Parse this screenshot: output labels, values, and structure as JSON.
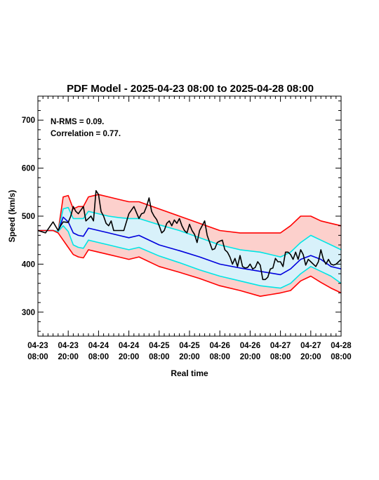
{
  "chart_data": {
    "type": "line",
    "title": "PDF Model - 2025-04-23 08:00 to 2025-04-28 08:00",
    "xlabel": "Real time",
    "ylabel": "Speed (km/s)",
    "xlim": [
      "2025-04-23 08:00",
      "2025-04-28 08:00"
    ],
    "ylim": [
      250,
      750
    ],
    "y_ticks": [
      300,
      400,
      500,
      600,
      700
    ],
    "x_ticks": [
      {
        "top": "04-23",
        "bottom": "08:00"
      },
      {
        "top": "04-23",
        "bottom": "20:00"
      },
      {
        "top": "04-24",
        "bottom": "08:00"
      },
      {
        "top": "04-24",
        "bottom": "20:00"
      },
      {
        "top": "04-25",
        "bottom": "08:00"
      },
      {
        "top": "04-25",
        "bottom": "20:00"
      },
      {
        "top": "04-26",
        "bottom": "08:00"
      },
      {
        "top": "04-26",
        "bottom": "20:00"
      },
      {
        "top": "04-27",
        "bottom": "08:00"
      },
      {
        "top": "04-27",
        "bottom": "20:00"
      },
      {
        "top": "04-28",
        "bottom": "08:00"
      }
    ],
    "annotations": [
      "N-RMS = 0.09.",
      "Correlation = 0.77."
    ],
    "x_hours": [
      0,
      4,
      6,
      8,
      10,
      12,
      14,
      16,
      18,
      20,
      24,
      28,
      32,
      36,
      40,
      48,
      56,
      64,
      72,
      80,
      88,
      96,
      100,
      104,
      108,
      112,
      116,
      120
    ],
    "series": [
      {
        "color": "#ff0000",
        "values": [
          470,
          470,
          470,
          468,
          540,
          543,
          515,
          520,
          520,
          540,
          545,
          540,
          535,
          530,
          530,
          515,
          500,
          485,
          470,
          465,
          465,
          465,
          480,
          500,
          500,
          490,
          485,
          480
        ]
      },
      {
        "color": "#00e5e5",
        "values": [
          470,
          470,
          470,
          468,
          515,
          518,
          495,
          495,
          495,
          510,
          505,
          500,
          497,
          495,
          495,
          482,
          470,
          455,
          440,
          430,
          425,
          415,
          425,
          445,
          460,
          450,
          440,
          430
        ]
      },
      {
        "color": "#0000dd",
        "values": [
          470,
          470,
          470,
          468,
          498,
          488,
          465,
          460,
          458,
          475,
          470,
          465,
          460,
          455,
          460,
          440,
          428,
          415,
          400,
          392,
          385,
          378,
          390,
          410,
          418,
          410,
          395,
          390
        ]
      },
      {
        "color": "#00e5e5",
        "values": [
          470,
          470,
          470,
          468,
          480,
          468,
          440,
          435,
          433,
          450,
          445,
          440,
          435,
          430,
          435,
          417,
          403,
          388,
          375,
          365,
          355,
          350,
          360,
          380,
          395,
          385,
          375,
          360
        ]
      },
      {
        "color": "#ff0000",
        "values": [
          470,
          470,
          470,
          465,
          450,
          435,
          420,
          415,
          413,
          430,
          425,
          420,
          415,
          410,
          415,
          395,
          383,
          370,
          355,
          345,
          333,
          340,
          345,
          365,
          375,
          362,
          350,
          340
        ]
      }
    ],
    "bands": [
      {
        "between": [
          0,
          4
        ],
        "color": "#fcd0cc"
      },
      {
        "between": [
          1,
          3
        ],
        "color": "#d8f1fa"
      }
    ],
    "observed": {
      "color": "#000000",
      "x_hours": [
        0,
        3,
        6,
        8,
        9,
        10,
        12,
        13,
        14,
        15,
        16,
        18,
        19,
        20,
        21,
        22,
        23,
        24,
        25,
        26,
        27,
        28,
        29,
        30,
        32,
        34,
        36,
        38,
        40,
        41,
        42,
        43,
        44,
        45,
        46,
        47,
        48,
        49,
        50,
        51,
        52,
        53,
        54,
        55,
        56,
        57,
        58,
        59,
        60,
        61,
        62,
        63,
        64,
        65,
        66,
        67,
        68,
        69,
        70,
        71,
        72,
        73,
        74,
        75,
        76,
        77,
        78,
        79,
        80,
        81,
        82,
        83,
        84,
        85,
        86,
        87,
        88,
        89,
        90,
        91,
        92,
        93,
        94,
        95,
        96,
        97,
        98,
        99,
        100,
        101,
        102,
        103,
        104,
        105,
        106,
        107,
        108,
        109,
        110,
        111,
        112,
        113,
        114,
        115,
        116,
        117,
        118,
        119,
        120
      ],
      "values": [
        470,
        465,
        488,
        470,
        480,
        488,
        487,
        500,
        520,
        510,
        505,
        520,
        490,
        495,
        500,
        490,
        553,
        545,
        510,
        500,
        485,
        480,
        490,
        470,
        470,
        470,
        505,
        520,
        495,
        505,
        507,
        520,
        538,
        510,
        500,
        493,
        480,
        465,
        470,
        485,
        490,
        480,
        492,
        485,
        495,
        480,
        470,
        465,
        483,
        470,
        462,
        445,
        470,
        480,
        490,
        460,
        445,
        430,
        432,
        445,
        448,
        450,
        430,
        425,
        415,
        400,
        412,
        395,
        418,
        395,
        392,
        393,
        400,
        390,
        393,
        405,
        398,
        368,
        368,
        373,
        390,
        392,
        412,
        405,
        405,
        395,
        425,
        425,
        420,
        410,
        425,
        410,
        430,
        420,
        398,
        410,
        405,
        400,
        395,
        405,
        430,
        410,
        400,
        410,
        400,
        398,
        400,
        405,
        410
      ]
    }
  }
}
